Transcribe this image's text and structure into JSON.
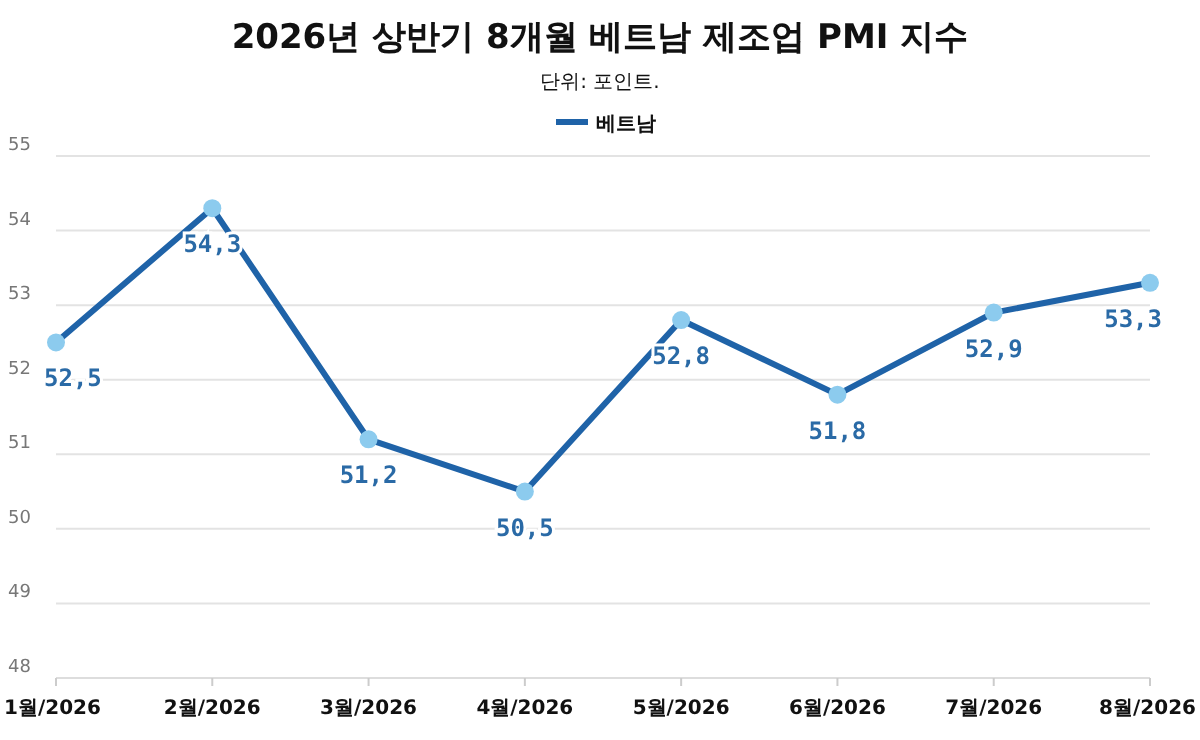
{
  "chart_data": {
    "type": "line",
    "title": "2026년 상반기 8개월 베트남 제조업 PMI 지수",
    "subtitle": "단위: 포인트.",
    "categories": [
      "1월/2026",
      "2월/2026",
      "3월/2026",
      "4월/2026",
      "5월/2026",
      "6월/2026",
      "7월/2026",
      "8월/2026"
    ],
    "series": [
      {
        "name": "베트남",
        "color": "#1f63a8",
        "colors": [
          "#8ccbee",
          "#8ccbee",
          "#8ccbee",
          "#8ccbee",
          "#8ccbee",
          "#8ccbee",
          "#8ccbee",
          "#8ccbee"
        ],
        "values": [
          52.5,
          54.3,
          51.2,
          50.5,
          52.8,
          51.8,
          52.9,
          53.3
        ],
        "value_labels": [
          "52,5",
          "54,3",
          "51,2",
          "50,5",
          "52,8",
          "51,8",
          "52,9",
          "53,3"
        ]
      }
    ],
    "ylim": [
      48,
      55
    ],
    "yticks": [
      48,
      49,
      50,
      51,
      52,
      53,
      54,
      55
    ],
    "grid": "y",
    "legend": "top",
    "marker": "circle",
    "line_style": "solid"
  }
}
